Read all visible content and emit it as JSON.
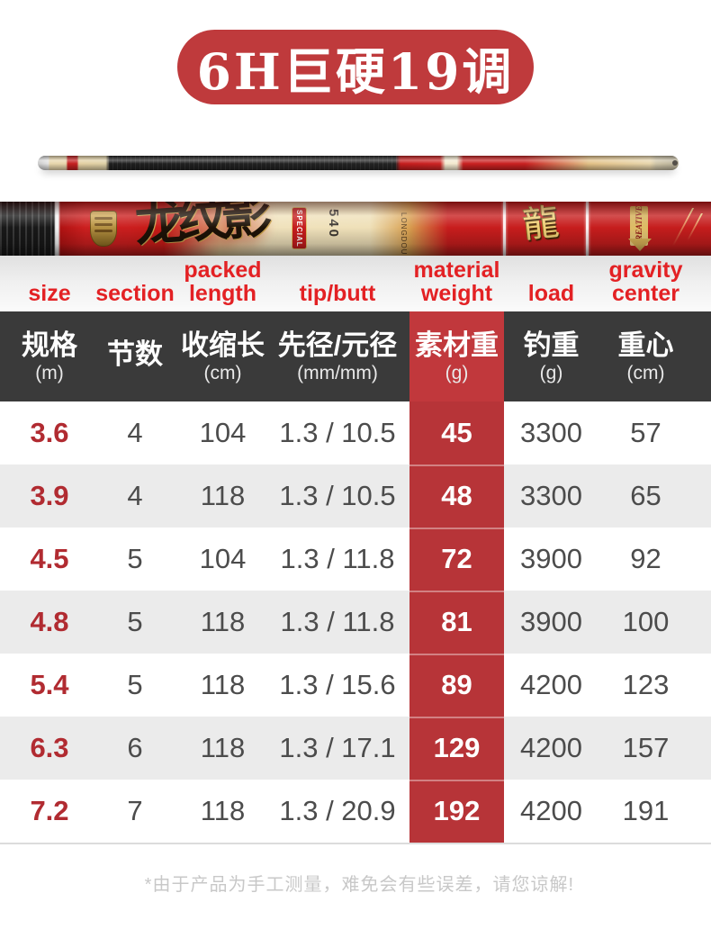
{
  "title_badge": {
    "label": "6H巨硬19调"
  },
  "rod_graphics": {
    "calligraphy": "龙纹影",
    "special_label": "SPECIAL",
    "length_label": "540",
    "brand_vertical": "LONGDOU",
    "dragon_glyph": "龍",
    "creative_label": "CREATIVE"
  },
  "colors": {
    "badge_red": "#bf3a3c",
    "header_text_red": "#e32124",
    "dark_header_bg": "#3a3a3a",
    "highlight_column_red": "#b73438",
    "size_text_red": "#b12b31",
    "value_gray": "#4c4c4c",
    "alt_row_gray": "#ebebeb",
    "footnote_gray": "#c8c8c8"
  },
  "table": {
    "en_header": [
      "size",
      "section",
      "packed\nlength",
      "tip/butt",
      "material\nweight",
      "load",
      "gravity\ncenter"
    ],
    "cn_header": [
      {
        "main": "规格",
        "unit": "(m)"
      },
      {
        "main": "节数",
        "unit": ""
      },
      {
        "main": "收缩长",
        "unit": "(cm)"
      },
      {
        "main": "先径/元径",
        "unit": "(mm/mm)"
      },
      {
        "main": "素材重",
        "unit": "(g)"
      },
      {
        "main": "钓重",
        "unit": "(g)"
      },
      {
        "main": "重心",
        "unit": "(cm)"
      }
    ],
    "rows": [
      {
        "cells": [
          "3.6",
          "4",
          "104",
          "1.3 / 10.5",
          "45",
          "3300",
          "57"
        ]
      },
      {
        "cells": [
          "3.9",
          "4",
          "118",
          "1.3 / 10.5",
          "48",
          "3300",
          "65"
        ]
      },
      {
        "cells": [
          "4.5",
          "5",
          "104",
          "1.3 / 11.8",
          "72",
          "3900",
          "92"
        ]
      },
      {
        "cells": [
          "4.8",
          "5",
          "118",
          "1.3 / 11.8",
          "81",
          "3900",
          "100"
        ]
      },
      {
        "cells": [
          "5.4",
          "5",
          "118",
          "1.3 / 15.6",
          "89",
          "4200",
          "123"
        ]
      },
      {
        "cells": [
          "6.3",
          "6",
          "118",
          "1.3 / 17.1",
          "129",
          "4200",
          "157"
        ]
      },
      {
        "cells": [
          "7.2",
          "7",
          "118",
          "1.3 / 20.9",
          "192",
          "4200",
          "191"
        ]
      }
    ]
  },
  "footnote": "*由于产品为手工测量，难免会有些误差，请您谅解!"
}
